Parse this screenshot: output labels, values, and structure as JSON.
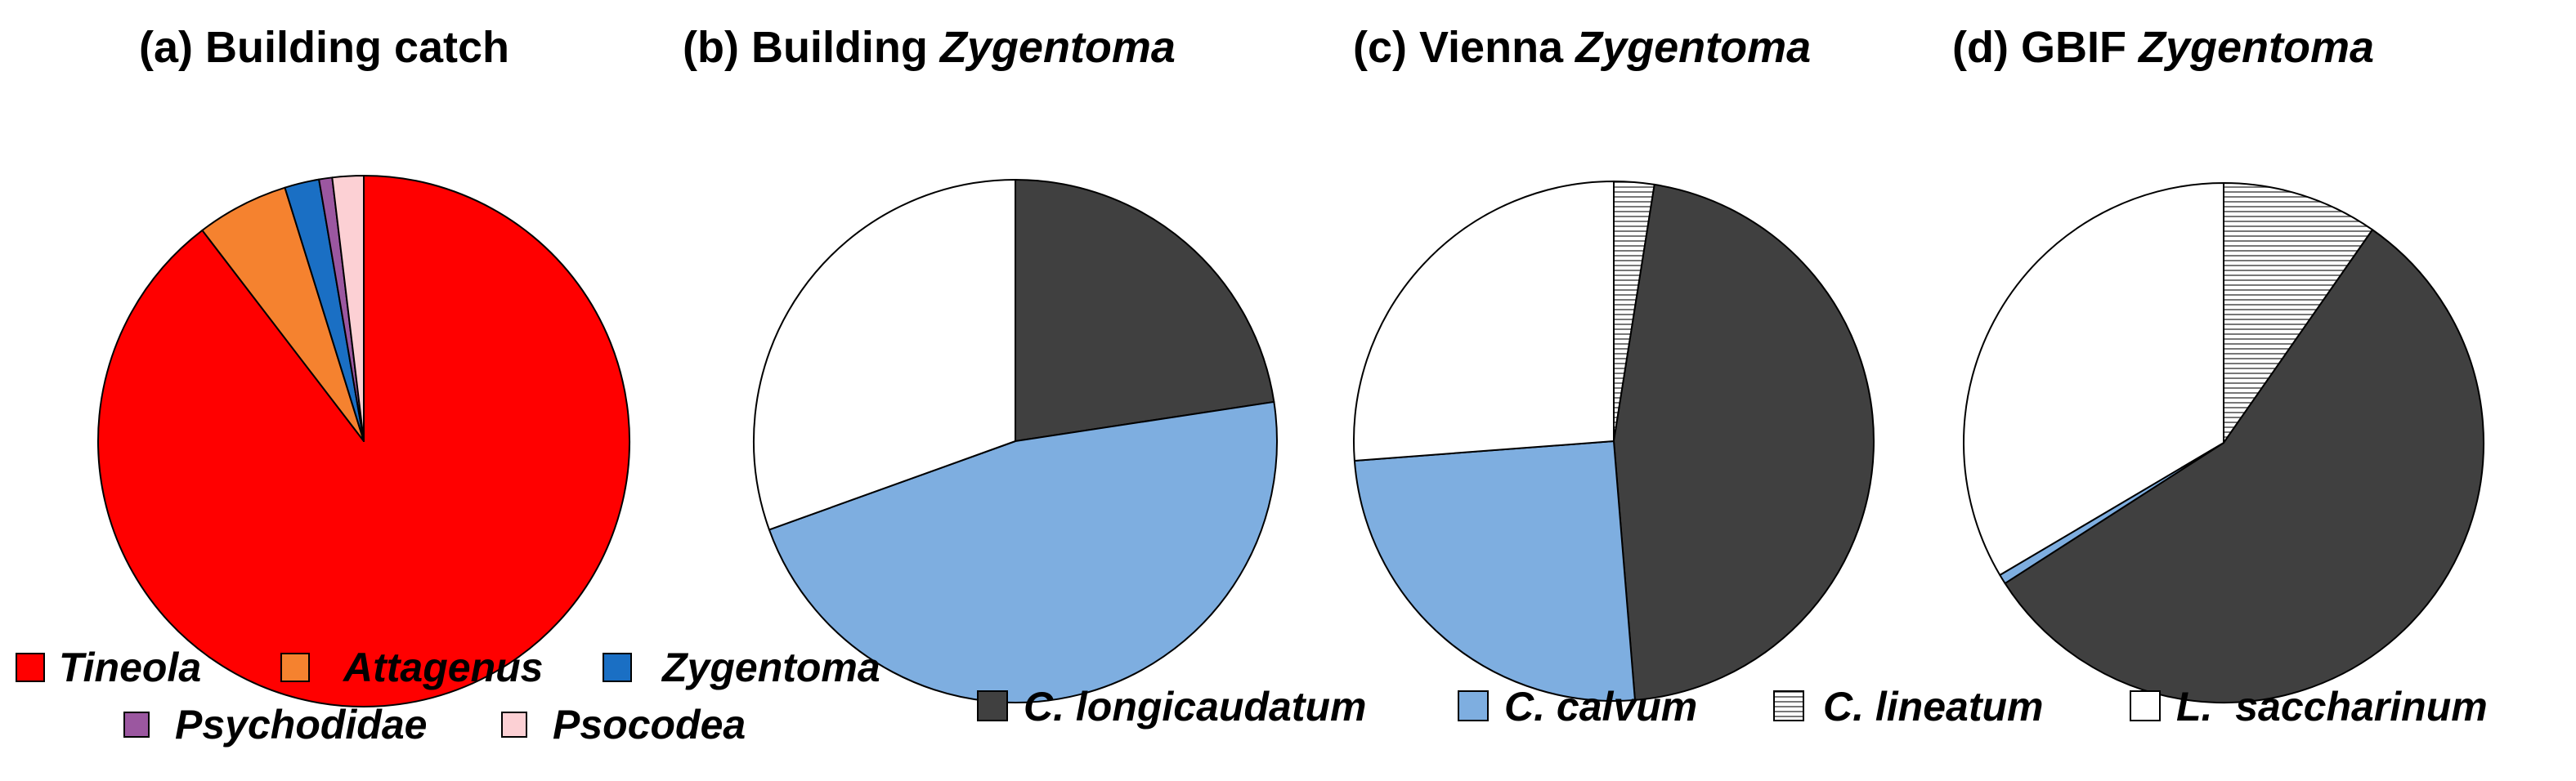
{
  "chart_data": [
    {
      "type": "pie",
      "title_prefix": "(a) ",
      "title_main": "Building catch",
      "title_italic": "",
      "categories": [
        "Tineola",
        "Attagenus",
        "Zygentoma",
        "Psychodidae",
        "Psocodea"
      ],
      "values": [
        89.6,
        5.6,
        2.1,
        0.8,
        1.9
      ]
    },
    {
      "type": "pie",
      "title_prefix": "(b) ",
      "title_main": "Building ",
      "title_italic": "Zygentoma",
      "categories": [
        "C. longicaudatum",
        "C. calvum",
        "C. lineatum",
        "L.  saccharinum"
      ],
      "values": [
        22.6,
        46.9,
        0,
        30.5
      ]
    },
    {
      "type": "pie",
      "title_prefix": "(c) ",
      "title_main": "Vienna ",
      "title_italic": "Zygentoma",
      "categories": [
        "C. longicaudatum",
        "C. calvum",
        "C. lineatum",
        "L.  saccharinum"
      ],
      "values": [
        46.2,
        25.1,
        2.5,
        26.2
      ]
    },
    {
      "type": "pie",
      "title_prefix": "(d) ",
      "title_main": "GBIF ",
      "title_italic": "Zygentoma",
      "categories": [
        "C. longicaudatum",
        "C. calvum",
        "C. lineatum",
        "L.  saccharinum"
      ],
      "values": [
        56.2,
        0.6,
        9.7,
        33.5
      ]
    }
  ],
  "legend_a": [
    {
      "label": "Tineola",
      "color": "#ff0000",
      "pattern": "solid"
    },
    {
      "label": "Attagenus",
      "color": "#f5822f",
      "pattern": "solid"
    },
    {
      "label": "Zygentoma",
      "color": "#1a6fc4",
      "pattern": "solid"
    },
    {
      "label": "Psychodidae",
      "color": "#9b57a0",
      "pattern": "solid"
    },
    {
      "label": "Psocodea",
      "color": "#fcd0d4",
      "pattern": "solid"
    }
  ],
  "legend_b": [
    {
      "label": "C. longicaudatum",
      "color": "#404040",
      "pattern": "solid"
    },
    {
      "label": "C. calvum",
      "color": "#7eaee0",
      "pattern": "solid"
    },
    {
      "label": "C. lineatum",
      "color": "#ffffff",
      "pattern": "hlines"
    },
    {
      "label": "L.  saccharinum",
      "color": "#ffffff",
      "pattern": "solid"
    }
  ]
}
